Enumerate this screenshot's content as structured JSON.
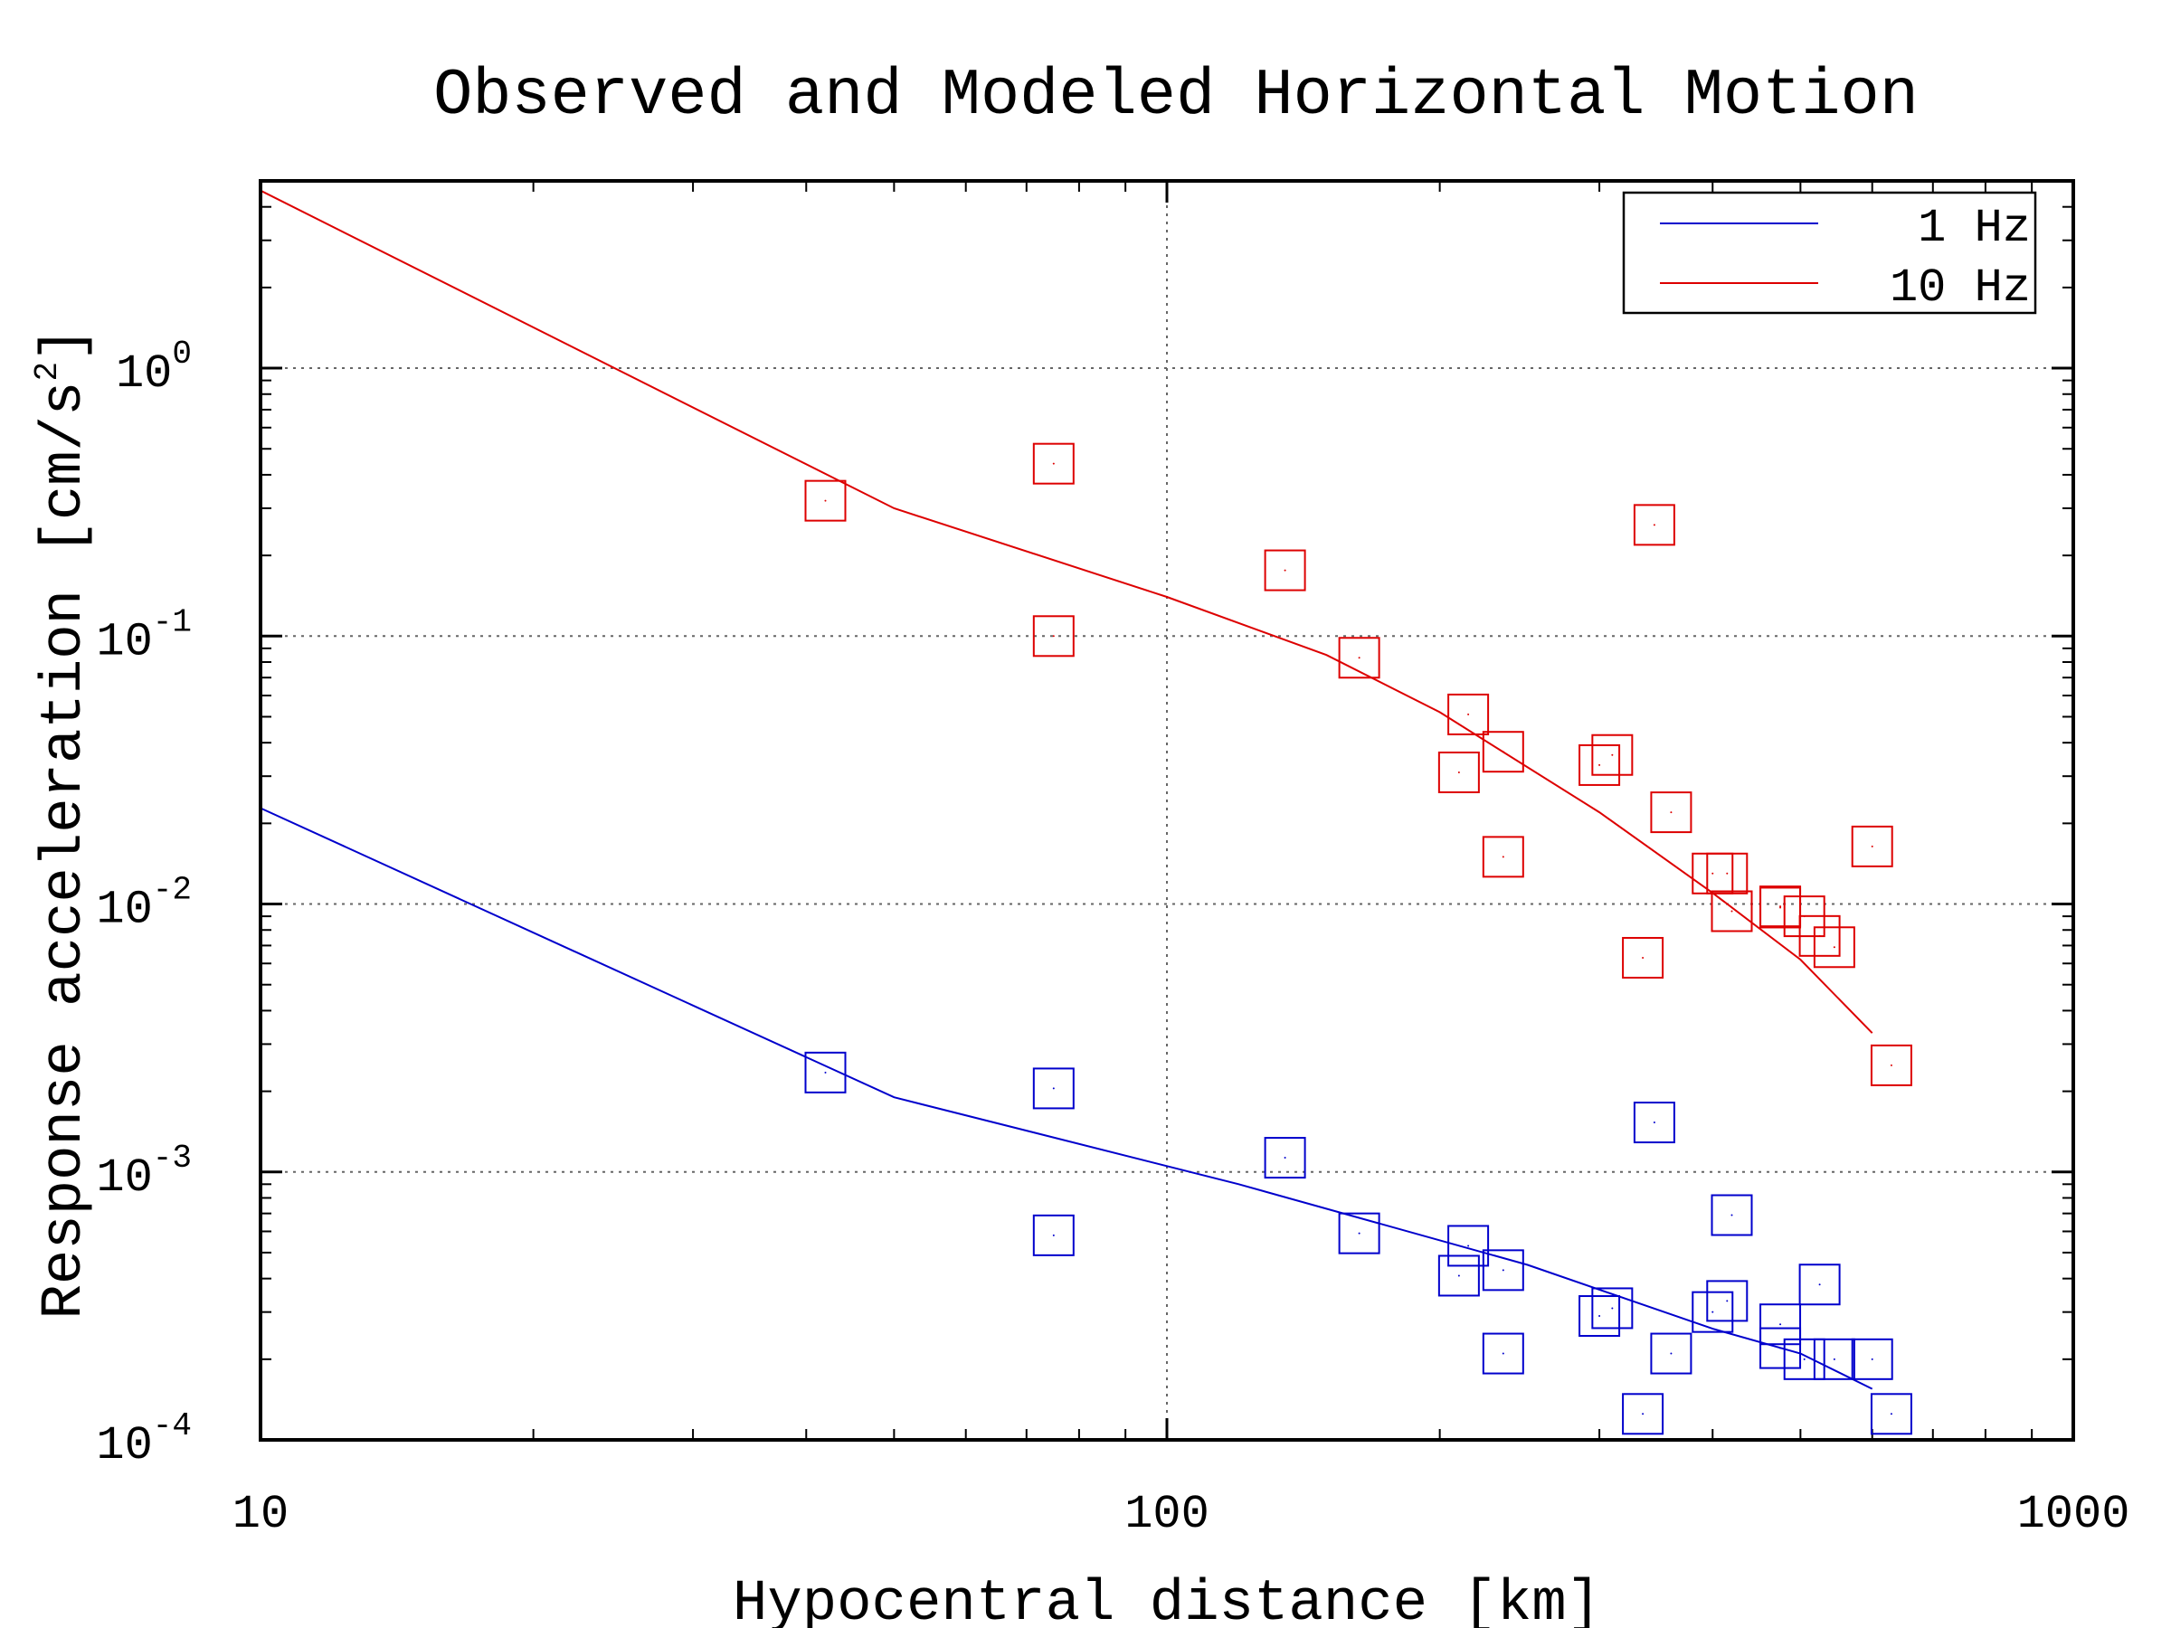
{
  "chart_data": {
    "type": "scatter",
    "title": "Observed and Modeled Horizontal Motion",
    "xlabel": "Hypocentral distance [km]",
    "ylabel": "Response acceleration [cm/s",
    "ylabel_sup": "2",
    "ylabel_close": "]",
    "xscale": "log",
    "yscale": "log",
    "xlim": [
      10,
      1000
    ],
    "ylim": [
      0.0001,
      5
    ],
    "x_ticks": [
      {
        "value": 10,
        "label": "10"
      },
      {
        "value": 100,
        "label": "100"
      },
      {
        "value": 1000,
        "label": "1000"
      }
    ],
    "y_ticks": [
      {
        "value": 0.0001,
        "base": "10",
        "exp": "-4"
      },
      {
        "value": 0.001,
        "base": "10",
        "exp": "-3"
      },
      {
        "value": 0.01,
        "base": "10",
        "exp": "-2"
      },
      {
        "value": 0.1,
        "base": "10",
        "exp": "-1"
      },
      {
        "value": 1,
        "base": "10",
        "exp": "0"
      }
    ],
    "grid": true,
    "legend_position": "top-right",
    "legend": [
      {
        "label": "1 Hz",
        "color": "#0000cc"
      },
      {
        "label": "10 Hz",
        "color": "#dd0000"
      }
    ],
    "series": [
      {
        "name": "1 Hz",
        "color": "#0000cc",
        "model_line": [
          [
            10,
            0.0228
          ],
          [
            50,
            0.0019
          ],
          [
            120,
            0.0009
          ],
          [
            250,
            0.00045
          ],
          [
            400,
            0.00026
          ],
          [
            500,
            0.00021
          ],
          [
            600,
            0.000155
          ]
        ],
        "observed": [
          [
            42,
            0.00235
          ],
          [
            75,
            0.00205
          ],
          [
            75,
            0.00058
          ],
          [
            135,
            0.00113
          ],
          [
            163,
            0.00059
          ],
          [
            210,
            0.00041
          ],
          [
            215,
            0.00053
          ],
          [
            235,
            0.00043
          ],
          [
            235,
            0.00021
          ],
          [
            300,
            0.00029
          ],
          [
            310,
            0.00031
          ],
          [
            335,
            0.000125
          ],
          [
            345,
            0.00153
          ],
          [
            360,
            0.00021
          ],
          [
            400,
            0.0003
          ],
          [
            415,
            0.00033
          ],
          [
            420,
            0.00069
          ],
          [
            475,
            0.00027
          ],
          [
            475,
            0.00022
          ],
          [
            505,
            0.0002
          ],
          [
            525,
            0.00038
          ],
          [
            545,
            0.0002
          ],
          [
            600,
            0.0002
          ],
          [
            630,
            0.000125
          ]
        ]
      },
      {
        "name": "10 Hz",
        "color": "#dd0000",
        "model_line": [
          [
            10,
            4.6
          ],
          [
            50,
            0.3
          ],
          [
            100,
            0.14
          ],
          [
            150,
            0.085
          ],
          [
            200,
            0.052
          ],
          [
            300,
            0.022
          ],
          [
            400,
            0.011
          ],
          [
            500,
            0.0062
          ],
          [
            600,
            0.0033
          ]
        ],
        "observed": [
          [
            42,
            0.32
          ],
          [
            75,
            0.44
          ],
          [
            75,
            0.1
          ],
          [
            135,
            0.176
          ],
          [
            163,
            0.083
          ],
          [
            210,
            0.031
          ],
          [
            215,
            0.051
          ],
          [
            235,
            0.037
          ],
          [
            235,
            0.015
          ],
          [
            300,
            0.033
          ],
          [
            310,
            0.036
          ],
          [
            335,
            0.0063
          ],
          [
            345,
            0.26
          ],
          [
            360,
            0.022
          ],
          [
            400,
            0.013
          ],
          [
            415,
            0.013
          ],
          [
            420,
            0.0094
          ],
          [
            475,
            0.0098
          ],
          [
            475,
            0.0097
          ],
          [
            505,
            0.009
          ],
          [
            525,
            0.0076
          ],
          [
            545,
            0.0069
          ],
          [
            600,
            0.0164
          ],
          [
            630,
            0.0025
          ]
        ]
      }
    ]
  }
}
